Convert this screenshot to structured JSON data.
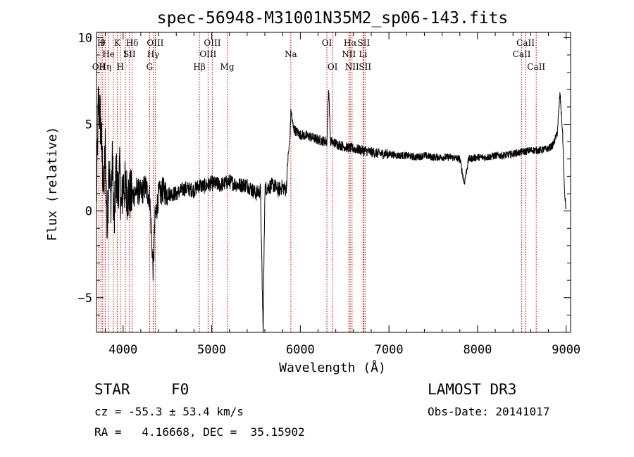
{
  "chart_data": {
    "type": "line",
    "title": "spec-56948-M31001N35M2_sp06-143.fits",
    "xlabel": "Wavelength (Å)",
    "ylabel": "Flux (relative)",
    "xlim": [
      3700,
      9050
    ],
    "ylim": [
      -7,
      10.3
    ],
    "xticks": [
      4000,
      5000,
      6000,
      7000,
      8000,
      9000
    ],
    "yticks": [
      -5,
      0,
      5,
      10
    ],
    "spectrum": {
      "x": [
        3700,
        3720,
        3740,
        3760,
        3780,
        3800,
        3820,
        3840,
        3860,
        3880,
        3900,
        3920,
        3940,
        3960,
        3980,
        4000,
        4050,
        4100,
        4150,
        4200,
        4250,
        4300,
        4340,
        4360,
        4400,
        4450,
        4500,
        4600,
        4700,
        4800,
        4861,
        4900,
        5000,
        5100,
        5200,
        5300,
        5400,
        5500,
        5550,
        5580,
        5600,
        5650,
        5700,
        5750,
        5800,
        5840,
        5860,
        5880,
        5895,
        5920,
        5950,
        6000,
        6100,
        6200,
        6300,
        6320,
        6340,
        6400,
        6500,
        6600,
        6700,
        6800,
        6900,
        7000,
        7100,
        7200,
        7300,
        7400,
        7500,
        7600,
        7700,
        7800,
        7850,
        7900,
        8000,
        8100,
        8200,
        8300,
        8400,
        8500,
        8600,
        8700,
        8800,
        8850,
        8900,
        8930,
        8960,
        8980,
        9000
      ],
      "y": [
        0.5,
        6.2,
        5.5,
        3.5,
        1.0,
        3.8,
        -1.5,
        3.2,
        0.5,
        2.8,
        -1.0,
        2.4,
        1.0,
        2.3,
        0.0,
        1.6,
        1.0,
        0.8,
        1.2,
        1.0,
        1.4,
        0.8,
        -3.5,
        -0.5,
        0.9,
        1.2,
        1.0,
        1.0,
        1.3,
        1.2,
        1.5,
        1.4,
        1.6,
        1.5,
        1.7,
        1.5,
        1.5,
        1.0,
        1.2,
        -7.0,
        1.3,
        1.4,
        1.5,
        1.2,
        1.4,
        1.2,
        3.0,
        4.0,
        5.8,
        4.8,
        4.6,
        4.4,
        4.3,
        4.1,
        4.0,
        7.2,
        4.0,
        3.9,
        3.7,
        3.6,
        3.5,
        3.4,
        3.3,
        3.3,
        3.2,
        3.2,
        3.1,
        3.2,
        3.1,
        3.1,
        3.1,
        3.0,
        1.6,
        3.0,
        3.1,
        3.1,
        3.2,
        3.2,
        3.3,
        3.4,
        3.5,
        3.5,
        3.6,
        3.8,
        4.5,
        6.8,
        4.5,
        1.2,
        0.0
      ]
    },
    "line_markers": [
      {
        "wl": 3727,
        "label": "OII",
        "row": 3
      },
      {
        "wl": 3750,
        "label": "H",
        "row": 1
      },
      {
        "wl": 3770,
        "label": "θ",
        "row": 1
      },
      {
        "wl": 3798,
        "label": "Hη",
        "row": 3
      },
      {
        "wl": 3835,
        "label": "He",
        "row": 2
      },
      {
        "wl": 3889,
        "label": "",
        "row": 0
      },
      {
        "wl": 3934,
        "label": "K",
        "row": 1
      },
      {
        "wl": 3969,
        "label": "H",
        "row": 3
      },
      {
        "wl": 4026,
        "label": "I",
        "row": 2
      },
      {
        "wl": 4072,
        "label": "SII",
        "row": 2
      },
      {
        "wl": 4102,
        "label": "Hδ",
        "row": 1
      },
      {
        "wl": 4300,
        "label": "G",
        "row": 3
      },
      {
        "wl": 4340,
        "label": "Hγ",
        "row": 2
      },
      {
        "wl": 4363,
        "label": "OIII",
        "row": 1
      },
      {
        "wl": 4861,
        "label": "Hβ",
        "row": 3
      },
      {
        "wl": 4959,
        "label": "OIII",
        "row": 2
      },
      {
        "wl": 5007,
        "label": "OIII",
        "row": 1
      },
      {
        "wl": 5175,
        "label": "Mg",
        "row": 3
      },
      {
        "wl": 5893,
        "label": "Na",
        "row": 2
      },
      {
        "wl": 6300,
        "label": "OI",
        "row": 1
      },
      {
        "wl": 6364,
        "label": "OI",
        "row": 3
      },
      {
        "wl": 6548,
        "label": "NII",
        "row": 2
      },
      {
        "wl": 6563,
        "label": "Hα",
        "row": 1
      },
      {
        "wl": 6584,
        "label": "NII",
        "row": 3
      },
      {
        "wl": 6708,
        "label": "Li",
        "row": 2
      },
      {
        "wl": 6716,
        "label": "SII",
        "row": 1
      },
      {
        "wl": 6731,
        "label": "SII",
        "row": 3
      },
      {
        "wl": 8498,
        "label": "CaII",
        "row": 2
      },
      {
        "wl": 8542,
        "label": "CaII",
        "row": 1
      },
      {
        "wl": 8662,
        "label": "CaII",
        "row": 3
      }
    ]
  },
  "info": {
    "class": "STAR",
    "subclass": "F0",
    "cz": "cz = -55.3 ± 53.4 km/s",
    "radec": "RA =   4.16668, DEC =  35.15902",
    "survey": "LAMOST DR3",
    "obsdate": "Obs-Date: 20141017"
  }
}
